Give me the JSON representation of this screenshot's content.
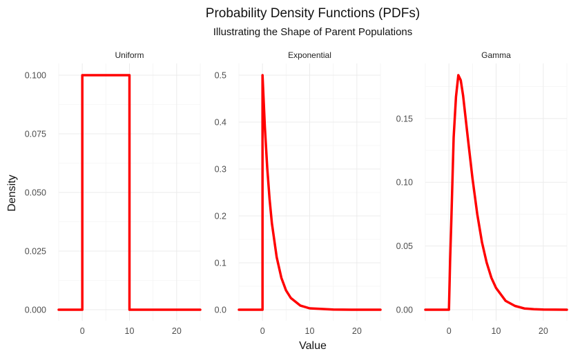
{
  "chart_data": {
    "type": "line",
    "title": "Probability Density Functions (PDFs)",
    "subtitle": "Illustrating the Shape of Parent Populations",
    "xlabel": "Value",
    "ylabel": "Density",
    "line_color": "#ff0000",
    "grid": true,
    "facets": [
      {
        "name": "Uniform",
        "xlim": [
          -5,
          25
        ],
        "ylim": [
          0,
          0.1
        ],
        "xticks": [
          "0",
          "10",
          "20"
        ],
        "yticks": [
          "0.000",
          "0.025",
          "0.050",
          "0.075",
          "0.100"
        ],
        "x": [
          -5,
          0,
          0,
          10,
          10,
          25
        ],
        "y": [
          0,
          0,
          0.1,
          0.1,
          0,
          0
        ]
      },
      {
        "name": "Exponential",
        "xlim": [
          -5,
          25
        ],
        "ylim": [
          0,
          0.5
        ],
        "xticks": [
          "0",
          "10",
          "20"
        ],
        "yticks": [
          "0.0",
          "0.1",
          "0.2",
          "0.3",
          "0.4",
          "0.5"
        ],
        "x": [
          -5,
          0,
          0,
          0.5,
          1,
          1.5,
          2,
          3,
          4,
          5,
          6,
          8,
          10,
          15,
          20,
          25
        ],
        "y": [
          0,
          0,
          0.5,
          0.389,
          0.303,
          0.236,
          0.184,
          0.112,
          0.068,
          0.041,
          0.025,
          0.009,
          0.003,
          0.0003,
          0,
          0
        ]
      },
      {
        "name": "Gamma",
        "xlim": [
          -5,
          25
        ],
        "ylim": [
          0,
          0.184
        ],
        "xticks": [
          "0",
          "10",
          "20"
        ],
        "yticks": [
          "0.00",
          "0.05",
          "0.10",
          "0.15"
        ],
        "x": [
          -5,
          0,
          0.25,
          0.5,
          1,
          1.5,
          2,
          2.5,
          3,
          4,
          5,
          6,
          7,
          8,
          9,
          10,
          12,
          14,
          16,
          18,
          20,
          25
        ],
        "y": [
          0,
          0,
          0.039,
          0.069,
          0.135,
          0.167,
          0.184,
          0.18,
          0.168,
          0.135,
          0.103,
          0.075,
          0.053,
          0.037,
          0.025,
          0.017,
          0.007,
          0.003,
          0.001,
          0.0004,
          0.0001,
          0
        ]
      }
    ]
  }
}
